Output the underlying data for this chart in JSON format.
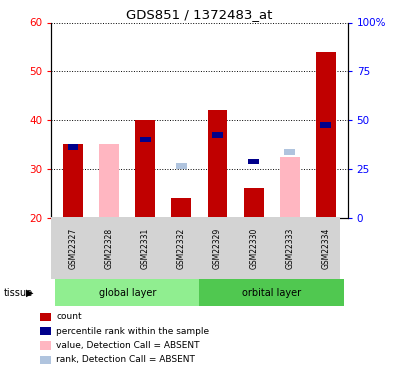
{
  "title": "GDS851 / 1372483_at",
  "samples": [
    "GSM22327",
    "GSM22328",
    "GSM22331",
    "GSM22332",
    "GSM22329",
    "GSM22330",
    "GSM22333",
    "GSM22334"
  ],
  "groups": {
    "global layer": [
      0,
      1,
      2,
      3
    ],
    "orbital layer": [
      4,
      5,
      6,
      7
    ]
  },
  "ylim_left": [
    20,
    60
  ],
  "ylim_right": [
    0,
    100
  ],
  "yticks_left": [
    20,
    30,
    40,
    50,
    60
  ],
  "yticks_right": [
    0,
    25,
    50,
    75,
    100
  ],
  "yticklabels_right": [
    "0",
    "25",
    "50",
    "75",
    "100%"
  ],
  "count_values": [
    35,
    0,
    40,
    24,
    42,
    26,
    0,
    54
  ],
  "percentile_values": [
    34.5,
    0,
    36,
    0,
    37,
    31.5,
    0,
    39
  ],
  "absent_value_values": [
    0,
    35,
    0,
    24,
    0,
    0,
    32.5,
    0
  ],
  "absent_rank_values": [
    0,
    0,
    0,
    30.5,
    0,
    0,
    33.5,
    0
  ],
  "count_color": "#c00000",
  "percentile_color": "#00008b",
  "absent_value_color": "#ffb6c1",
  "absent_rank_color": "#b0c4de",
  "bar_width": 0.55,
  "group_bg_color": "#d3d3d3",
  "global_layer_color": "#90ee90",
  "orbital_layer_color": "#50c850",
  "legend_items": [
    {
      "label": "count",
      "color": "#c00000"
    },
    {
      "label": "percentile rank within the sample",
      "color": "#00008b"
    },
    {
      "label": "value, Detection Call = ABSENT",
      "color": "#ffb6c1"
    },
    {
      "label": "rank, Detection Call = ABSENT",
      "color": "#b0c4de"
    }
  ]
}
